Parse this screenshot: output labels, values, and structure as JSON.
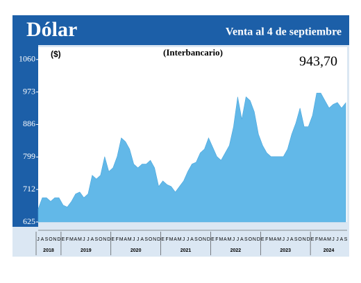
{
  "chart_data": {
    "type": "area",
    "title": "Dólar",
    "subtitle": "Venta al 4 de septiembre",
    "caption": "(Interbancario)",
    "y_label": "($)",
    "annotation": "943,70",
    "color": "#62b8e8",
    "categories": [
      "J",
      "A",
      "S",
      "O",
      "N",
      "D",
      "E",
      "F",
      "M",
      "A",
      "M",
      "J",
      "J",
      "A",
      "S",
      "O",
      "N",
      "D",
      "E",
      "F",
      "M",
      "A",
      "M",
      "J",
      "J",
      "A",
      "S",
      "O",
      "N",
      "D",
      "E",
      "F",
      "M",
      "A",
      "M",
      "J",
      "J",
      "A",
      "S",
      "O",
      "N",
      "D",
      "E",
      "F",
      "M",
      "A",
      "M",
      "J",
      "J",
      "A",
      "S",
      "O",
      "N",
      "D",
      "E",
      "F",
      "M",
      "A",
      "M",
      "J",
      "J",
      "A",
      "S",
      "O",
      "N",
      "D",
      "E",
      "F",
      "M",
      "A",
      "M",
      "J",
      "J",
      "A",
      "S"
    ],
    "years": [
      "2018",
      "2019",
      "2020",
      "2021",
      "2022",
      "2023",
      "2024"
    ],
    "values": [
      660,
      690,
      690,
      680,
      690,
      690,
      670,
      665,
      680,
      700,
      705,
      690,
      700,
      750,
      740,
      750,
      800,
      760,
      770,
      800,
      850,
      840,
      820,
      780,
      770,
      780,
      780,
      790,
      770,
      720,
      735,
      725,
      720,
      705,
      720,
      735,
      760,
      780,
      785,
      810,
      820,
      850,
      825,
      800,
      790,
      810,
      830,
      880,
      960,
      900,
      960,
      950,
      920,
      860,
      830,
      810,
      800,
      800,
      800,
      800,
      820,
      860,
      890,
      930,
      880,
      880,
      910,
      970,
      970,
      950,
      930,
      940,
      945,
      930,
      944
    ],
    "ylim": [
      625,
      1093
    ],
    "yticks": [
      625,
      712,
      799,
      886,
      973,
      1060
    ]
  }
}
